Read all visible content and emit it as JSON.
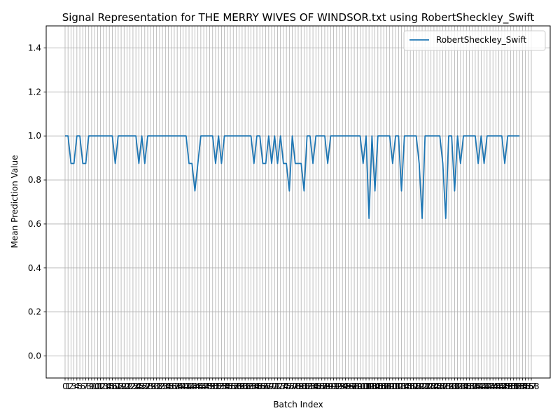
{
  "chart_data": {
    "type": "line",
    "title": "Signal Representation for THE MERRY WIVES OF WINDSOR.txt using RobertSheckley_Swift",
    "xlabel": "Batch Index",
    "ylabel": "Mean Prediction Value",
    "xlim": [
      -6.4,
      164.4
    ],
    "ylim": [
      -0.1,
      1.5
    ],
    "yticks": [
      0.0,
      0.2,
      0.4,
      0.6,
      0.8,
      1.0,
      1.2,
      1.4
    ],
    "ytick_labels": [
      "0.0",
      "0.2",
      "0.4",
      "0.6",
      "0.8",
      "1.0",
      "1.2",
      "1.4"
    ],
    "grid": true,
    "legend_position": "top-right",
    "series": [
      {
        "name": "RobertSheckley_Swift",
        "color": "#1f77b4",
        "values": [
          1,
          1,
          0.875,
          0.875,
          1,
          1,
          0.875,
          0.875,
          1,
          1,
          1,
          1,
          1,
          1,
          1,
          1,
          1,
          0.875,
          1,
          1,
          1,
          1,
          1,
          1,
          1,
          0.875,
          1,
          0.875,
          1,
          1,
          1,
          1,
          1,
          1,
          1,
          1,
          1,
          1,
          1,
          1,
          1,
          1,
          0.875,
          0.875,
          0.75,
          0.875,
          1,
          1,
          1,
          1,
          1,
          0.875,
          1,
          0.875,
          1,
          1,
          1,
          1,
          1,
          1,
          1,
          1,
          1,
          1,
          0.875,
          1,
          1,
          0.875,
          0.875,
          1,
          0.875,
          1,
          0.875,
          1,
          0.875,
          0.875,
          0.75,
          1,
          0.875,
          0.875,
          0.875,
          0.75,
          1,
          1,
          0.875,
          1,
          1,
          1,
          1,
          0.875,
          1,
          1,
          1,
          1,
          1,
          1,
          1,
          1,
          1,
          1,
          1,
          0.875,
          1,
          0.625,
          1,
          0.75,
          1,
          1,
          1,
          1,
          1,
          0.875,
          1,
          1,
          0.75,
          1,
          1,
          1,
          1,
          1,
          0.875,
          0.625,
          1,
          1,
          1,
          1,
          1,
          1,
          0.875,
          0.625,
          1,
          1,
          0.75,
          1,
          0.875,
          1,
          1,
          1,
          1,
          1,
          0.875,
          1,
          0.875,
          1,
          1,
          1,
          1,
          1,
          1,
          0.875,
          1,
          1,
          1,
          1,
          1
        ]
      }
    ],
    "xticks": [
      0,
      1,
      2,
      3,
      4,
      5,
      6,
      7,
      8,
      9,
      10,
      11,
      12,
      13,
      14,
      15,
      16,
      17,
      18,
      19,
      20,
      21,
      22,
      23,
      24,
      25,
      26,
      27,
      28,
      29,
      30,
      31,
      32,
      33,
      34,
      35,
      36,
      37,
      38,
      39,
      40,
      41,
      42,
      43,
      44,
      45,
      46,
      47,
      48,
      49,
      50,
      51,
      52,
      53,
      54,
      55,
      56,
      57,
      58,
      59,
      60,
      61,
      62,
      63,
      64,
      65,
      66,
      67,
      68,
      69,
      70,
      71,
      72,
      73,
      74,
      75,
      76,
      77,
      78,
      79,
      80,
      81,
      82,
      83,
      84,
      85,
      86,
      87,
      88,
      89,
      90,
      91,
      92,
      93,
      94,
      95,
      96,
      97,
      98,
      99,
      100,
      101,
      102,
      103,
      104,
      105,
      106,
      107,
      108,
      109,
      110,
      111,
      112,
      113,
      114,
      115,
      116,
      117,
      118,
      119,
      120,
      121,
      122,
      123,
      124,
      125,
      126,
      127,
      128,
      129,
      130,
      131,
      132,
      133,
      134,
      135,
      136,
      137,
      138,
      139,
      140,
      141,
      142,
      143,
      144,
      145,
      146,
      147,
      148,
      149,
      150,
      151,
      152,
      153,
      154,
      155,
      156,
      157,
      158
    ]
  }
}
